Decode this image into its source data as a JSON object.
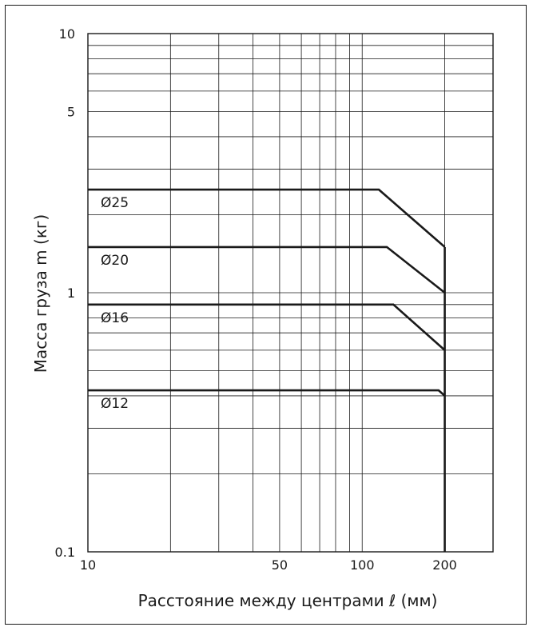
{
  "chart_data": {
    "type": "line",
    "xlabel": "Расстояние между центрами ℓ (мм)",
    "ylabel": "Масса груза m (кг)",
    "xscale": "log",
    "yscale": "log",
    "xlim": [
      10,
      300
    ],
    "ylim": [
      0.1,
      10
    ],
    "x_tick_labels": [
      {
        "value": 10,
        "label": "10"
      },
      {
        "value": 50,
        "label": "50"
      },
      {
        "value": 100,
        "label": "100"
      },
      {
        "value": 200,
        "label": "200"
      }
    ],
    "y_tick_labels": [
      {
        "value": 10,
        "label": "10"
      },
      {
        "value": 5,
        "label": "5"
      },
      {
        "value": 1,
        "label": "1"
      },
      {
        "value": 0.1,
        "label": "0.1"
      }
    ],
    "grid": true,
    "series": [
      {
        "name": "Ø25",
        "x": [
          10,
          115,
          200
        ],
        "y": [
          2.5,
          2.5,
          1.5
        ]
      },
      {
        "name": "Ø20",
        "x": [
          10,
          123,
          200
        ],
        "y": [
          1.5,
          1.5,
          1.0
        ]
      },
      {
        "name": "Ø16",
        "x": [
          10,
          130,
          200
        ],
        "y": [
          0.9,
          0.9,
          0.6
        ]
      },
      {
        "name": "Ø12",
        "x": [
          10,
          190,
          200
        ],
        "y": [
          0.42,
          0.42,
          0.4
        ]
      }
    ],
    "drop_line_x": 200,
    "colors": {
      "line": "#1a1a1a",
      "grid": "#1a1a1a",
      "background": "#ffffff"
    }
  }
}
